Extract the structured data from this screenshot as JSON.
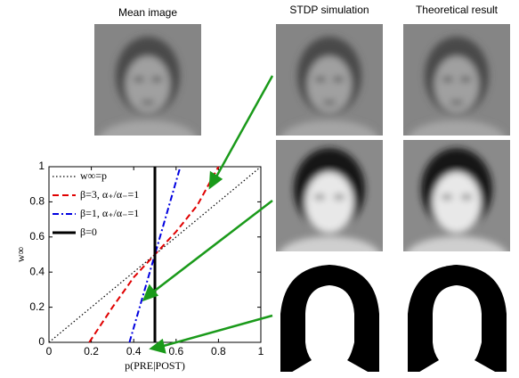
{
  "panels": [
    "Mean image",
    "STDP simulation",
    "Theoretical result"
  ],
  "chart_data": {
    "type": "line",
    "xlabel": "p(PRE|POST)",
    "ylabel": "w∞",
    "xlim": [
      0,
      1
    ],
    "ylim": [
      0,
      1
    ],
    "xticks": [
      0,
      0.2,
      0.4,
      0.6,
      0.8,
      1
    ],
    "yticks": [
      0,
      0.2,
      0.4,
      0.6,
      0.8,
      1
    ],
    "legend": "upper-left",
    "series": [
      {
        "name": "w∞=p",
        "color": "#000000",
        "linestyle": "dotted",
        "x": [
          0,
          1
        ],
        "values": [
          0,
          1
        ]
      },
      {
        "name": "β=3, α₊/α₋=1",
        "color": "#e00000",
        "linestyle": "dashed",
        "x": [
          0.19,
          0.3,
          0.4,
          0.5,
          0.6,
          0.7,
          0.8
        ],
        "values": [
          0,
          0.2,
          0.37,
          0.5,
          0.63,
          0.78,
          1
        ]
      },
      {
        "name": "β=1, α₊/α₋=1",
        "color": "#0000e0",
        "linestyle": "dashdot",
        "x": [
          0.38,
          0.44,
          0.5,
          0.56,
          0.62
        ],
        "values": [
          0,
          0.25,
          0.5,
          0.75,
          1
        ]
      },
      {
        "name": "β=0",
        "color": "#000000",
        "linestyle": "solid",
        "x": [
          0.5,
          0.5
        ],
        "values": [
          0,
          1
        ]
      }
    ]
  }
}
